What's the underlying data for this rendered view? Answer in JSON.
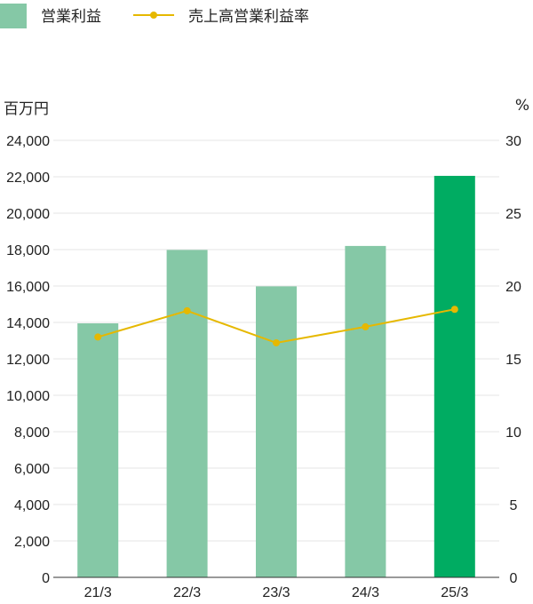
{
  "chart_data": {
    "type": "bar",
    "title": "",
    "categories": [
      "21/3",
      "22/3",
      "23/3",
      "24/3",
      "25/3"
    ],
    "series": [
      {
        "name": "営業利益",
        "kind": "bar",
        "axis": "left",
        "values": [
          13950,
          17980,
          15980,
          18200,
          22050
        ],
        "color": "#85c8a6",
        "highlight_color": "#00ac62",
        "highlight_index": 4
      },
      {
        "name": "売上高営業利益率",
        "kind": "line",
        "axis": "right",
        "values": [
          16.5,
          18.3,
          16.1,
          17.2,
          18.4
        ],
        "color": "#e6b800"
      }
    ],
    "y_left": {
      "unit": "百万円",
      "range": [
        0,
        24000
      ],
      "ticks": [
        "0",
        "2,000",
        "4,000",
        "6,000",
        "8,000",
        "10,000",
        "12,000",
        "14,000",
        "16,000",
        "18,000",
        "20,000",
        "22,000",
        "24,000"
      ]
    },
    "y_right": {
      "unit": "%",
      "range": [
        0,
        30
      ],
      "ticks": [
        "0",
        "5",
        "10",
        "15",
        "20",
        "25",
        "30"
      ]
    },
    "grid": true,
    "grid_color": "#e6e6e6",
    "legend_position": "top-left"
  }
}
